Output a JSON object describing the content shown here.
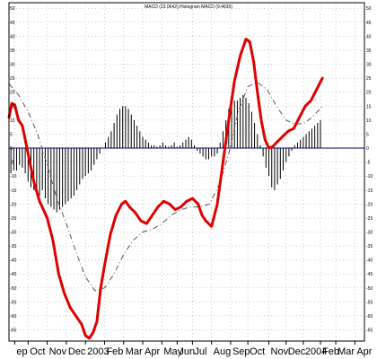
{
  "chart_data": {
    "type": "line",
    "title": "MACD (23.0642),Histogram MACD (9.4635)",
    "xlabel": "",
    "ylabel": "",
    "ylim": [
      -69,
      52
    ],
    "grid": true,
    "y_ticks": [
      50,
      45,
      40,
      35,
      30,
      25,
      20,
      15,
      10,
      5,
      0,
      -5,
      -10,
      -15,
      -20,
      -25,
      -30,
      -35,
      -40,
      -45,
      -50,
      -55,
      -60,
      -65
    ],
    "x_tick_labels": [
      "ep",
      "Oct",
      "Nov",
      "Dec",
      "2003",
      "Feb",
      "Mar",
      "Apr",
      "May",
      "Jun",
      "Jul",
      "Aug",
      "Sep",
      "Oct",
      "Nov",
      "Dec",
      "2004",
      "Feb",
      "Mar",
      "Apr"
    ],
    "x_tick_positions": [
      0.3,
      1.0,
      2.0,
      3.0,
      4.0,
      5.0,
      6.0,
      7.0,
      8.0,
      8.8,
      9.6,
      10.6,
      11.6,
      12.5,
      13.6,
      14.5,
      15.4,
      16.3,
      17.1,
      18.1
    ],
    "x_range": [
      0,
      18.6
    ],
    "colors": {
      "macd": "#e00000",
      "signal": "#555555",
      "histogram": "#000000",
      "grid": "#999999",
      "zero_line": "#000066"
    },
    "series": [
      {
        "role": "macd",
        "style": "thick-red-line",
        "x": [
          0,
          0.15,
          0.3,
          0.5,
          0.7,
          1.0,
          1.3,
          1.6,
          2.0,
          2.3,
          2.6,
          2.9,
          3.2,
          3.5,
          3.8,
          4.0,
          4.2,
          4.4,
          4.6,
          4.8,
          5.0,
          5.3,
          5.6,
          5.9,
          6.1,
          6.3,
          6.6,
          6.9,
          7.2,
          7.5,
          7.8,
          8.1,
          8.4,
          8.7,
          9.0,
          9.3,
          9.6,
          9.9,
          10.1,
          10.3,
          10.6,
          10.9,
          11.2,
          11.5,
          11.8,
          12.1,
          12.4,
          12.6,
          12.8,
          13.0,
          13.2,
          13.4,
          13.6,
          13.8,
          14.0,
          14.3,
          14.6,
          14.9,
          15.2,
          15.5,
          15.8,
          16.1,
          16.4
        ],
        "y": [
          11,
          16,
          15.5,
          10,
          8,
          -2,
          -12,
          -19,
          -25,
          -33,
          -45,
          -52,
          -57,
          -60,
          -63,
          -67,
          -68,
          -66,
          -62,
          -50,
          -42,
          -31,
          -24,
          -20,
          -19,
          -21,
          -23,
          -26,
          -27,
          -24,
          -21,
          -19,
          -20,
          -22,
          -21,
          -19,
          -18,
          -20,
          -24,
          -26,
          -28,
          -20,
          -5,
          10,
          24,
          33,
          39,
          38,
          31,
          20,
          10,
          3,
          0,
          0.5,
          2,
          4,
          6,
          7,
          11,
          15,
          17,
          21,
          25
        ]
      },
      {
        "role": "signal",
        "style": "dashed-gray-line",
        "x": [
          0,
          0.5,
          1.0,
          1.5,
          2.0,
          2.5,
          3.0,
          3.5,
          4.0,
          4.5,
          5.0,
          5.5,
          6.0,
          6.5,
          7.0,
          7.5,
          8.0,
          8.5,
          9.0,
          9.5,
          10.0,
          10.5,
          11.0,
          11.5,
          12.0,
          12.5,
          13.0,
          13.5,
          14.0,
          14.5,
          15.0,
          15.5,
          16.0,
          16.4
        ],
        "y": [
          23,
          19,
          13,
          5,
          -6,
          -18,
          -27,
          -37,
          -46,
          -51,
          -50,
          -45,
          -38,
          -33,
          -30,
          -29,
          -27,
          -24,
          -22,
          -21,
          -21,
          -20,
          -13,
          -2,
          13,
          22,
          23.5,
          21,
          15,
          10,
          8.5,
          9,
          12,
          15
        ]
      },
      {
        "role": "histogram",
        "style": "vertical-bars",
        "x": [
          0.1,
          0.25,
          0.4,
          0.55,
          0.7,
          0.85,
          1.0,
          1.15,
          1.3,
          1.45,
          1.6,
          1.75,
          1.9,
          2.05,
          2.2,
          2.35,
          2.5,
          2.65,
          2.8,
          2.95,
          3.1,
          3.25,
          3.4,
          3.55,
          3.7,
          3.85,
          4.0,
          4.15,
          4.3,
          4.45,
          4.6,
          4.75,
          4.9,
          5.05,
          5.2,
          5.35,
          5.5,
          5.65,
          5.8,
          5.95,
          6.1,
          6.25,
          6.4,
          6.55,
          6.7,
          6.85,
          7.0,
          7.15,
          7.3,
          7.45,
          7.6,
          7.75,
          7.9,
          8.05,
          8.2,
          8.35,
          8.5,
          8.65,
          8.8,
          8.95,
          9.1,
          9.25,
          9.4,
          9.55,
          9.7,
          9.85,
          10.0,
          10.15,
          10.3,
          10.45,
          10.6,
          10.75,
          10.9,
          11.05,
          11.2,
          11.35,
          11.5,
          11.65,
          11.8,
          11.95,
          12.1,
          12.25,
          12.4,
          12.55,
          12.7,
          12.85,
          13.0,
          13.15,
          13.3,
          13.45,
          13.6,
          13.75,
          13.9,
          14.05,
          14.2,
          14.35,
          14.5,
          14.65,
          14.8,
          14.95,
          15.1,
          15.25,
          15.4,
          15.55,
          15.7,
          15.85,
          16.0,
          16.15,
          16.3
        ],
        "y": [
          -9,
          -8,
          -8,
          -6,
          -7,
          -9,
          -12,
          -14,
          -15,
          -16,
          -17,
          -15,
          -18,
          -20,
          -21,
          -22,
          -23,
          -22,
          -21,
          -20,
          -19,
          -18,
          -17,
          -15,
          -13,
          -11,
          -10,
          -9,
          -8,
          -6,
          -4,
          -2,
          0,
          2,
          4,
          6,
          9,
          12,
          14,
          15,
          15,
          14,
          12,
          10,
          8,
          6,
          4,
          3,
          2,
          1,
          1,
          0.5,
          1,
          2,
          1,
          0.5,
          1,
          2,
          0.5,
          1,
          2,
          3,
          4,
          3,
          1,
          -1,
          -2,
          -3,
          -4,
          -4,
          -3,
          -3,
          -2,
          2,
          6,
          10,
          14,
          16,
          17,
          17,
          18,
          19,
          18,
          16,
          13,
          9,
          5,
          1,
          -3,
          -7,
          -10,
          -14,
          -15,
          -13,
          -11,
          -8,
          -5,
          -3,
          -1,
          1,
          2,
          3,
          4,
          5,
          6,
          7,
          8,
          9,
          10
        ]
      }
    ]
  }
}
